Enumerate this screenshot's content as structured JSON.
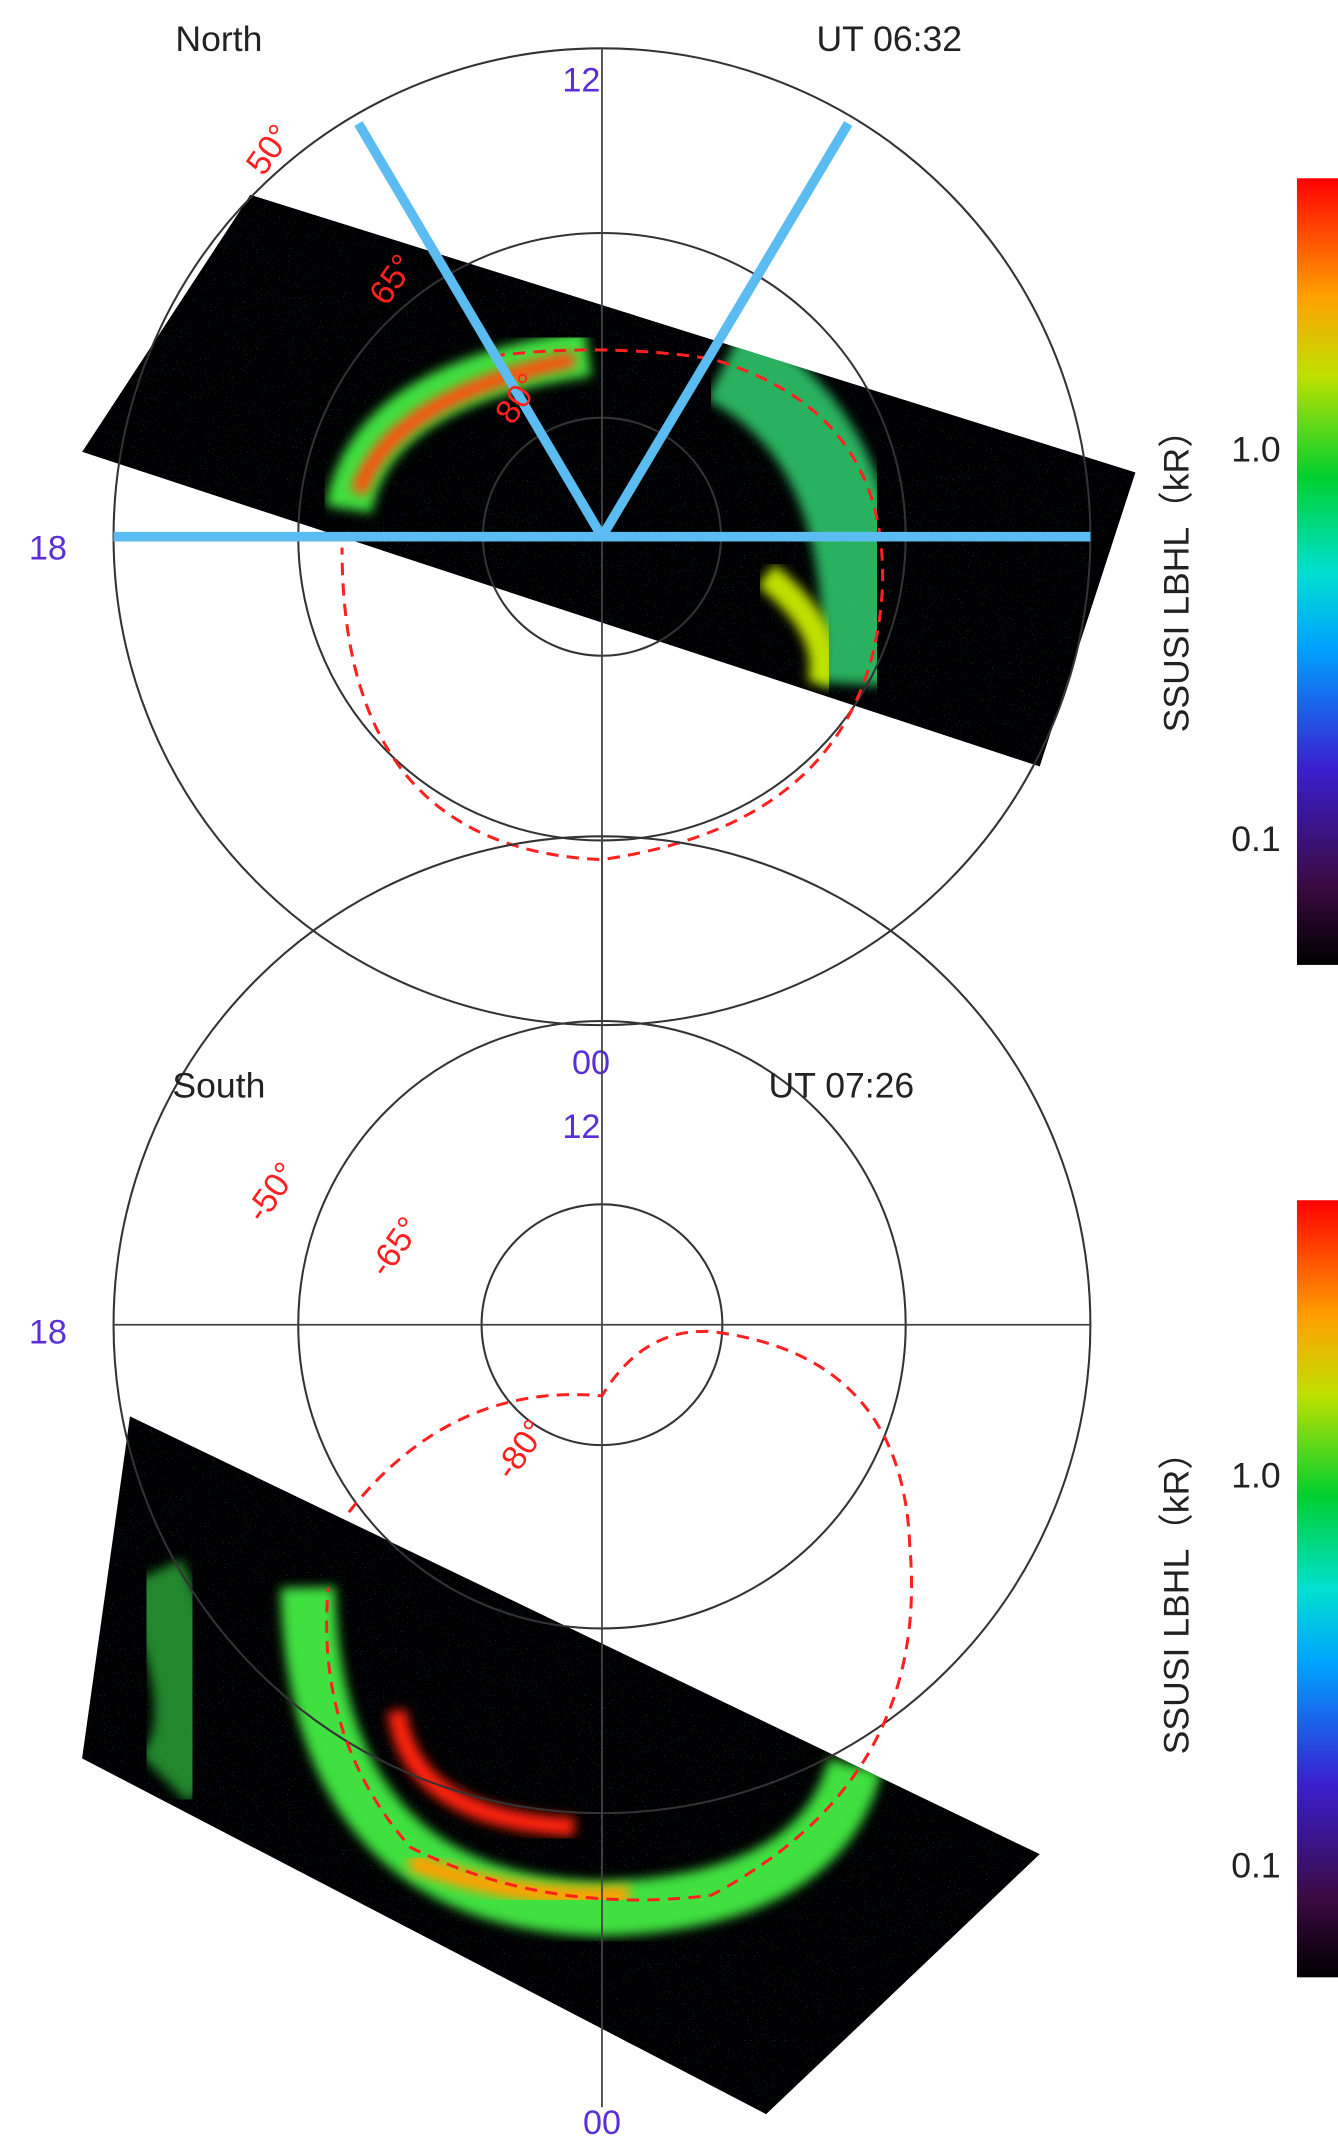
{
  "panels": [
    {
      "hemisphere": "North",
      "time": "UT 06:32",
      "mlt_labels": [
        "12",
        "18",
        "00"
      ],
      "lat_labels": [
        "50°",
        "65°",
        "80°"
      ],
      "colorbar": {
        "label": "SSUSI LBHL（kR）",
        "ticks": [
          "1.0",
          "0.1"
        ]
      }
    },
    {
      "hemisphere": "South",
      "time": "UT 07:26",
      "mlt_labels": [
        "12",
        "18",
        "00"
      ],
      "lat_labels": [
        "-50°",
        "-65°",
        "-80°"
      ],
      "colorbar": {
        "label": "SSUSI LBHL（kR）",
        "ticks": [
          "1.0",
          "0.1"
        ]
      }
    }
  ]
}
